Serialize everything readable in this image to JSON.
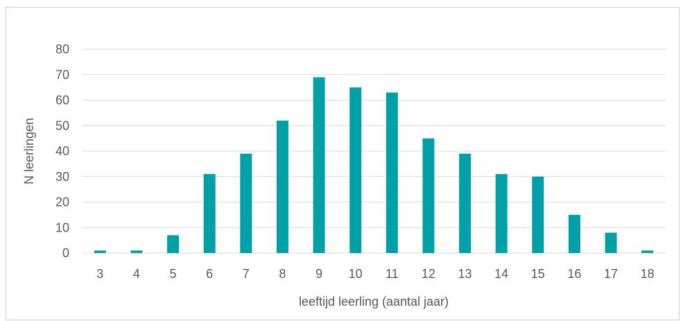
{
  "chart_data": {
    "type": "bar",
    "categories": [
      "3",
      "4",
      "5",
      "6",
      "7",
      "8",
      "9",
      "10",
      "11",
      "12",
      "13",
      "14",
      "15",
      "16",
      "17",
      "18"
    ],
    "values": [
      1,
      1,
      7,
      31,
      39,
      52,
      69,
      65,
      63,
      45,
      39,
      31,
      30,
      15,
      8,
      1
    ],
    "xlabel": "leeftijd leerling (aantal jaar)",
    "ylabel": "N leerlingen",
    "ylim": [
      0,
      80
    ],
    "yticks": [
      0,
      10,
      20,
      30,
      40,
      50,
      60,
      70,
      80
    ],
    "grid": true,
    "bar_color": "#00A0A8"
  }
}
